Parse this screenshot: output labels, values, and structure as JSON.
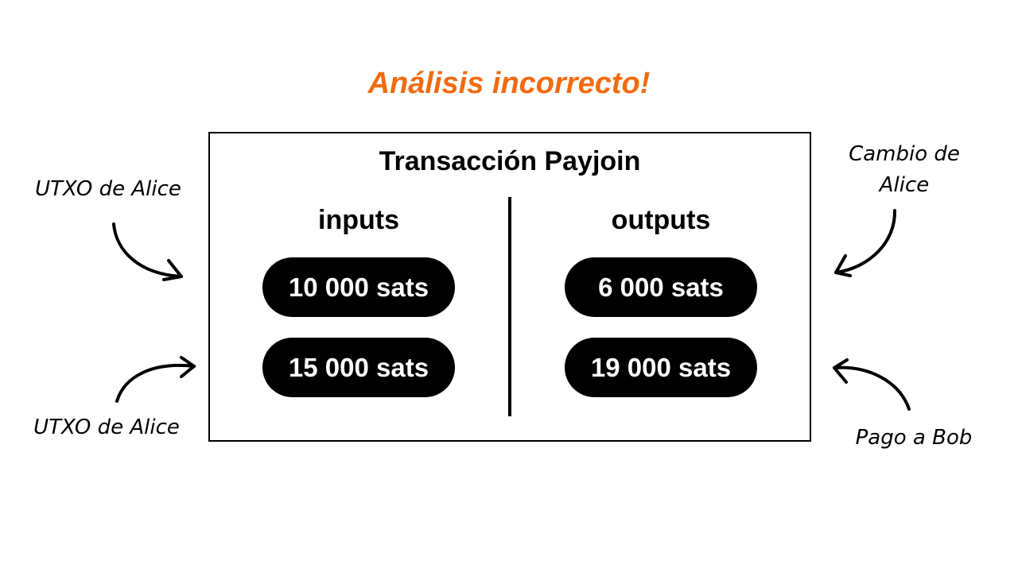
{
  "title": "Análisis incorrecto!",
  "colors": {
    "title": "#f26b0f",
    "ink": "#000000",
    "pill_text": "#ffffff"
  },
  "transaction": {
    "title": "Transacción Payjoin",
    "inputs_header": "inputs",
    "outputs_header": "outputs",
    "inputs": [
      "10 000 sats",
      "15 000 sats"
    ],
    "outputs": [
      "6 000 sats",
      "19 000 sats"
    ]
  },
  "annotations": {
    "input_1": "UTXO de Alice",
    "input_2": "UTXO de Alice",
    "output_1_line1": "Cambio de",
    "output_1_line2": "Alice",
    "output_2": "Pago a Bob"
  }
}
